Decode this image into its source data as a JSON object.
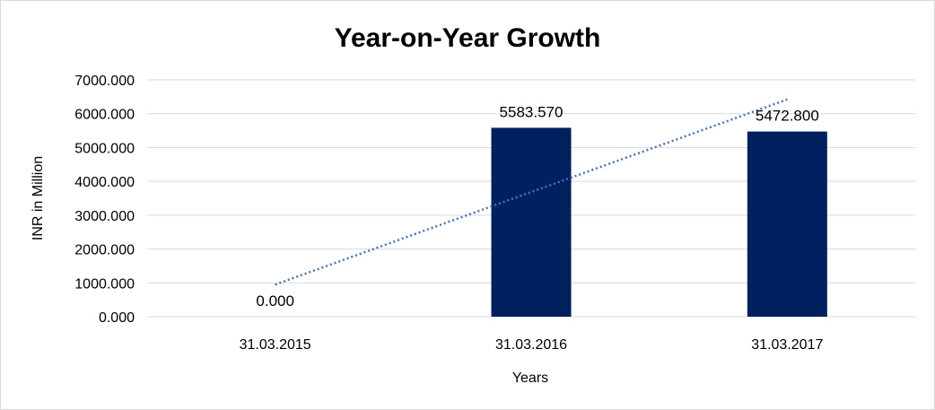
{
  "chart_data": {
    "type": "bar",
    "title": "Year-on-Year Growth",
    "xlabel": "Years",
    "ylabel": "INR in Million",
    "categories": [
      "31.03.2015",
      "31.03.2016",
      "31.03.2017"
    ],
    "values": [
      0.0,
      5583.57,
      5472.8
    ],
    "value_labels": [
      "0.000",
      "5583.570",
      "5472.800"
    ],
    "ylim": [
      0,
      7000
    ],
    "yticks": [
      "0.000",
      "1000.000",
      "2000.000",
      "3000.000",
      "4000.000",
      "5000.000",
      "6000.000",
      "7000.000"
    ],
    "grid": true,
    "trendline": "linear",
    "bar_color": "#002060",
    "trendline_color": "#4472c4",
    "legend": "none"
  }
}
